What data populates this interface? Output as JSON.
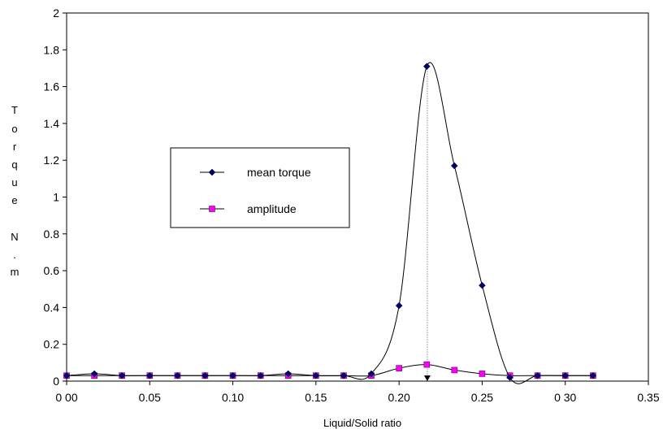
{
  "chart_data": {
    "type": "line",
    "title": "",
    "xlabel": "Liquid/Solid ratio",
    "ylabel_chars": [
      "T",
      "o",
      "r",
      "q",
      "u",
      "e",
      "N",
      ".",
      "m"
    ],
    "xlim": [
      0,
      0.35
    ],
    "ylim": [
      0,
      2
    ],
    "x_ticks": [
      0,
      0.05,
      0.1,
      0.15,
      0.2,
      0.25,
      0.3,
      0.35
    ],
    "x_tick_labels": [
      "0 00",
      "0.05",
      "0.10",
      "0.15",
      "0.20",
      "0.25",
      "0 30",
      "0.35"
    ],
    "y_ticks": [
      0,
      0.2,
      0.4,
      0.6,
      0.8,
      1,
      1.2,
      1.4,
      1.6,
      1.8,
      2
    ],
    "y_tick_labels": [
      "0",
      "0.2",
      "0.4",
      "0.6",
      "0.8",
      "1",
      "1.2",
      "1.4",
      "1.6",
      "1.8",
      "2"
    ],
    "grid": false,
    "legend_position": "middle-left",
    "peak_marker_x": 0.217,
    "series": [
      {
        "name": "mean torque",
        "marker": "diamond",
        "color": "#000066",
        "x": [
          0,
          0.0167,
          0.0333,
          0.05,
          0.0667,
          0.0833,
          0.1,
          0.1167,
          0.1333,
          0.15,
          0.1667,
          0.1833,
          0.2,
          0.2167,
          0.2333,
          0.25,
          0.2667,
          0.2833,
          0.3,
          0.3167
        ],
        "values": [
          0.03,
          0.04,
          0.03,
          0.03,
          0.03,
          0.03,
          0.03,
          0.03,
          0.04,
          0.03,
          0.03,
          0.04,
          0.41,
          1.71,
          1.17,
          0.52,
          0.02,
          0.03,
          0.03,
          0.03
        ]
      },
      {
        "name": "amplitude",
        "marker": "square",
        "color": "#ff00ff",
        "x": [
          0,
          0.0167,
          0.0333,
          0.05,
          0.0667,
          0.0833,
          0.1,
          0.1167,
          0.1333,
          0.15,
          0.1667,
          0.1833,
          0.2,
          0.2167,
          0.2333,
          0.25,
          0.2667,
          0.2833,
          0.3,
          0.3167
        ],
        "values": [
          0.03,
          0.03,
          0.03,
          0.03,
          0.03,
          0.03,
          0.03,
          0.03,
          0.03,
          0.03,
          0.03,
          0.03,
          0.07,
          0.09,
          0.06,
          0.04,
          0.03,
          0.03,
          0.03,
          0.03
        ]
      }
    ]
  }
}
